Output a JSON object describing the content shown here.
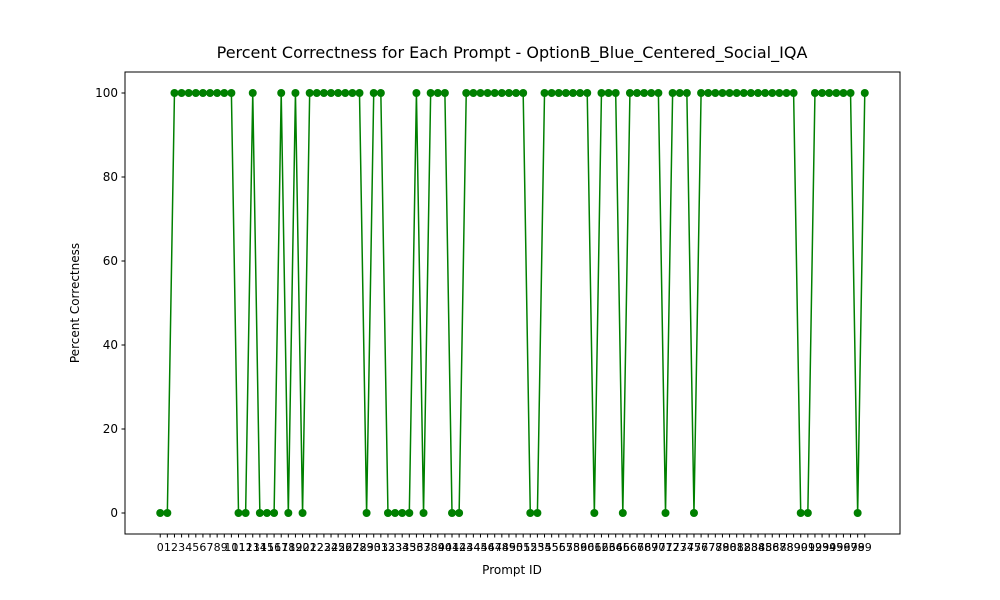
{
  "chart_data": {
    "type": "line",
    "title": "Percent Correctness for Each Prompt - OptionB_Blue_Centered_Social_IQA",
    "xlabel": "Prompt ID",
    "ylabel": "Percent Correctness",
    "x": [
      0,
      1,
      2,
      3,
      4,
      5,
      6,
      7,
      8,
      9,
      10,
      11,
      12,
      13,
      14,
      15,
      16,
      17,
      18,
      19,
      20,
      21,
      22,
      23,
      24,
      25,
      26,
      27,
      28,
      29,
      30,
      31,
      32,
      33,
      34,
      35,
      36,
      37,
      38,
      39,
      40,
      41,
      42,
      43,
      44,
      45,
      46,
      47,
      48,
      49,
      50,
      51,
      52,
      53,
      54,
      55,
      56,
      57,
      58,
      59,
      60,
      61,
      62,
      63,
      64,
      65,
      66,
      67,
      68,
      69,
      70,
      71,
      72,
      73,
      74,
      75,
      76,
      77,
      78,
      79,
      80,
      81,
      82,
      83,
      84,
      85,
      86,
      87,
      88,
      89,
      90,
      91,
      92,
      93,
      94,
      95,
      96,
      97,
      98,
      99
    ],
    "series": [
      {
        "color": "#008000",
        "values": [
          0,
          0,
          100,
          100,
          100,
          100,
          100,
          100,
          100,
          100,
          100,
          0,
          0,
          100,
          0,
          0,
          0,
          100,
          0,
          100,
          0,
          100,
          100,
          100,
          100,
          100,
          100,
          100,
          100,
          0,
          100,
          100,
          0,
          0,
          0,
          0,
          100,
          0,
          100,
          100,
          100,
          0,
          0,
          100,
          100,
          100,
          100,
          100,
          100,
          100,
          100,
          100,
          0,
          0,
          100,
          100,
          100,
          100,
          100,
          100,
          100,
          0,
          100,
          100,
          100,
          0,
          100,
          100,
          100,
          100,
          100,
          0,
          100,
          100,
          100,
          0,
          100,
          100,
          100,
          100,
          100,
          100,
          100,
          100,
          100,
          100,
          100,
          100,
          100,
          100,
          0,
          0,
          100,
          100,
          100,
          100,
          100,
          100,
          0,
          100
        ]
      }
    ],
    "xlim": [
      -4.95,
      103.95
    ],
    "ylim": [
      -5,
      105
    ],
    "xticks": [
      0,
      1,
      2,
      3,
      4,
      5,
      6,
      7,
      8,
      9,
      10,
      11,
      12,
      13,
      14,
      15,
      16,
      17,
      18,
      19,
      20,
      21,
      22,
      23,
      24,
      25,
      26,
      27,
      28,
      29,
      30,
      31,
      32,
      33,
      34,
      35,
      36,
      37,
      38,
      39,
      40,
      41,
      42,
      43,
      44,
      45,
      46,
      47,
      48,
      49,
      50,
      51,
      52,
      53,
      54,
      55,
      56,
      57,
      58,
      59,
      60,
      61,
      62,
      63,
      64,
      65,
      66,
      67,
      68,
      69,
      70,
      71,
      72,
      73,
      74,
      75,
      76,
      77,
      78,
      79,
      80,
      81,
      82,
      83,
      84,
      85,
      86,
      87,
      88,
      89,
      90,
      91,
      92,
      93,
      94,
      95,
      96,
      97,
      98,
      99
    ],
    "yticks": [
      0,
      20,
      40,
      60,
      80,
      100
    ]
  }
}
